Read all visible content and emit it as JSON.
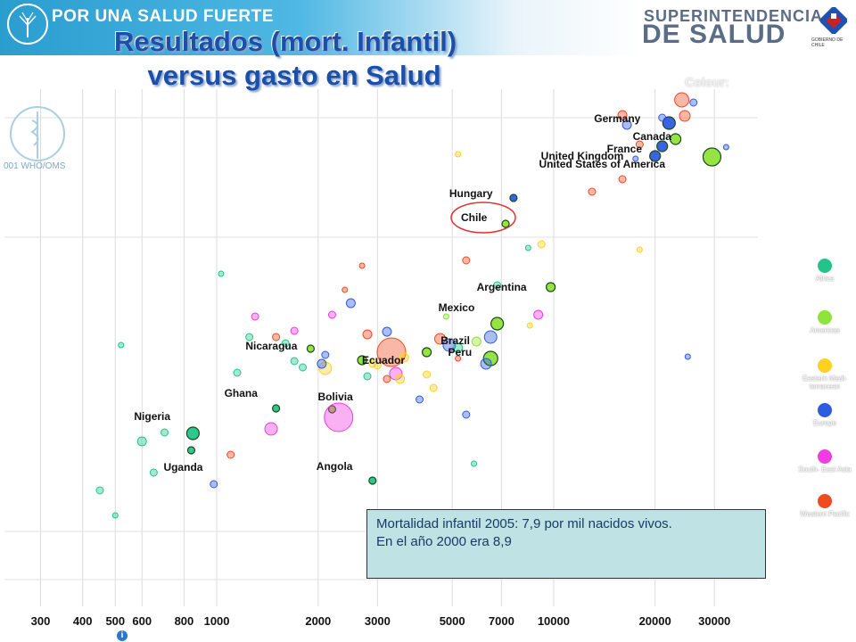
{
  "header": {
    "slogan": "POR UNA SALUD FUERTE",
    "brand_line1": "SUPERINTENDENCIA",
    "brand_line2": "DE SALUD",
    "brand_sub": "GOBIERNO DE CHILE",
    "watermark": "001 WHO/OMS",
    "colour_tag": "Colour:"
  },
  "slide": {
    "title_line1": "Resultados (mort. Infantil)",
    "title_line2": "versus gasto en Salud"
  },
  "infobox": {
    "line1": "Mortalidad infantil 2005: 7,9 por mil nacidos vivos.",
    "line2": "En el año 2000 era 8,9"
  },
  "legend": [
    {
      "label": "Africa",
      "color": "#22c48a"
    },
    {
      "label": "Americas",
      "color": "#8fe33a"
    },
    {
      "label": "Eastern Medi- terranean",
      "color": "#ffd21f"
    },
    {
      "label": "Europe",
      "color": "#2f5be0"
    },
    {
      "label": "South- East Asia",
      "color": "#f03ce0"
    },
    {
      "label": "Western Pacific",
      "color": "#f04a22"
    }
  ],
  "colors": {
    "Africa": "#22c48a",
    "Americas": "#8fe33a",
    "EMR": "#ffd21f",
    "Europe": "#2f5be0",
    "SEAsia": "#f03ce0",
    "WPacific": "#f04a22",
    "highlight": "#e03030"
  },
  "chart_data": {
    "type": "scatter",
    "x_ticks": [
      "300",
      "400",
      "500",
      "600",
      "800",
      "1000",
      "2000",
      "3000",
      "5000",
      "7000",
      "10000",
      "20000",
      "30000"
    ],
    "x_scale": "log",
    "xlim": [
      260,
      38000
    ],
    "grid": true,
    "highlight": "Chile",
    "points": [
      {
        "name": "Germany",
        "x": 22000,
        "region": "Europe",
        "r": 7,
        "labeled": true
      },
      {
        "name": "Canada",
        "x": 23000,
        "region": "Americas",
        "r": 6,
        "labeled": true
      },
      {
        "name": "France",
        "x": 21000,
        "region": "Europe",
        "r": 6,
        "labeled": true
      },
      {
        "name": "United Kingdom",
        "x": 20000,
        "region": "Europe",
        "r": 6,
        "labeled": true
      },
      {
        "name": "United States of America",
        "x": 29500,
        "region": "Americas",
        "r": 10,
        "labeled": true
      },
      {
        "name": "Hungary",
        "x": 7600,
        "region": "Europe",
        "r": 4,
        "labeled": true
      },
      {
        "name": "Chile",
        "x": 7200,
        "region": "Americas",
        "r": 4,
        "labeled": true
      },
      {
        "name": "Argentina",
        "x": 9800,
        "region": "Americas",
        "r": 5,
        "labeled": true
      },
      {
        "name": "Mexico",
        "x": 6800,
        "region": "Americas",
        "r": 7,
        "labeled": true
      },
      {
        "name": "Brazil",
        "x": 6500,
        "region": "Americas",
        "r": 8,
        "labeled": true
      },
      {
        "name": "Peru",
        "x": 4200,
        "region": "Americas",
        "r": 5,
        "labeled": true
      },
      {
        "name": "Nicaragua",
        "x": 1900,
        "region": "Americas",
        "r": 4,
        "labeled": true
      },
      {
        "name": "Ecuador",
        "x": 2700,
        "region": "Americas",
        "r": 5,
        "labeled": true
      },
      {
        "name": "Ghana",
        "x": 1500,
        "region": "Africa",
        "r": 4,
        "labeled": true
      },
      {
        "name": "Bolivia",
        "x": 2200,
        "region": "Americas",
        "r": 4,
        "labeled": true
      },
      {
        "name": "Nigeria",
        "x": 850,
        "region": "Africa",
        "r": 7,
        "labeled": true
      },
      {
        "name": "Uganda",
        "x": 840,
        "region": "Africa",
        "r": 4,
        "labeled": true
      },
      {
        "name": "Angola",
        "x": 2900,
        "region": "Africa",
        "r": 4,
        "labeled": true
      },
      {
        "name": "",
        "x": 24000,
        "region": "WPacific",
        "r": 8
      },
      {
        "name": "",
        "x": 24500,
        "region": "WPacific",
        "r": 6
      },
      {
        "name": "",
        "x": 26000,
        "region": "Europe",
        "r": 4
      },
      {
        "name": "",
        "x": 16000,
        "region": "WPacific",
        "r": 5
      },
      {
        "name": "",
        "x": 16500,
        "region": "Europe",
        "r": 5
      },
      {
        "name": "",
        "x": 18000,
        "region": "WPacific",
        "r": 4
      },
      {
        "name": "",
        "x": 16000,
        "region": "WPacific",
        "r": 4
      },
      {
        "name": "",
        "x": 13000,
        "region": "WPacific",
        "r": 4
      },
      {
        "name": "",
        "x": 9000,
        "region": "SEAsia",
        "r": 5
      },
      {
        "name": "",
        "x": 6500,
        "region": "Europe",
        "r": 7
      },
      {
        "name": "",
        "x": 3300,
        "region": "WPacific",
        "r": 16
      },
      {
        "name": "",
        "x": 2300,
        "region": "SEAsia",
        "r": 16
      },
      {
        "name": "",
        "x": 1450,
        "region": "SEAsia",
        "r": 7
      },
      {
        "name": "",
        "x": 3400,
        "region": "SEAsia",
        "r": 7
      },
      {
        "name": "",
        "x": 4600,
        "region": "WPacific",
        "r": 6
      },
      {
        "name": "",
        "x": 4900,
        "region": "Europe",
        "r": 7
      },
      {
        "name": "",
        "x": 5900,
        "region": "Americas",
        "r": 5
      },
      {
        "name": "",
        "x": 5200,
        "region": "Africa",
        "r": 5
      },
      {
        "name": "",
        "x": 1700,
        "region": "Africa",
        "r": 4
      },
      {
        "name": "",
        "x": 1250,
        "region": "Africa",
        "r": 4
      },
      {
        "name": "",
        "x": 1150,
        "region": "Africa",
        "r": 4
      },
      {
        "name": "",
        "x": 2100,
        "region": "EMR",
        "r": 7
      },
      {
        "name": "",
        "x": 3600,
        "region": "EMR",
        "r": 5
      },
      {
        "name": "",
        "x": 3500,
        "region": "EMR",
        "r": 5
      },
      {
        "name": "",
        "x": 4200,
        "region": "EMR",
        "r": 4
      },
      {
        "name": "",
        "x": 2800,
        "region": "WPacific",
        "r": 5
      },
      {
        "name": "",
        "x": 2200,
        "region": "SEAsia",
        "r": 4
      },
      {
        "name": "",
        "x": 3200,
        "region": "Europe",
        "r": 5
      },
      {
        "name": "",
        "x": 3000,
        "region": "EMR",
        "r": 4
      },
      {
        "name": "",
        "x": 2100,
        "region": "Europe",
        "r": 4
      },
      {
        "name": "",
        "x": 2050,
        "region": "Europe",
        "r": 5
      },
      {
        "name": "",
        "x": 1800,
        "region": "Africa",
        "r": 4
      },
      {
        "name": "",
        "x": 1700,
        "region": "SEAsia",
        "r": 4
      },
      {
        "name": "",
        "x": 1500,
        "region": "WPacific",
        "r": 4
      },
      {
        "name": "",
        "x": 1600,
        "region": "Africa",
        "r": 4
      },
      {
        "name": "",
        "x": 1300,
        "region": "SEAsia",
        "r": 4
      },
      {
        "name": "",
        "x": 1100,
        "region": "WPacific",
        "r": 4
      },
      {
        "name": "",
        "x": 700,
        "region": "Africa",
        "r": 4
      },
      {
        "name": "",
        "x": 600,
        "region": "Africa",
        "r": 5
      },
      {
        "name": "",
        "x": 650,
        "region": "Africa",
        "r": 4
      },
      {
        "name": "",
        "x": 450,
        "region": "Africa",
        "r": 4
      },
      {
        "name": "",
        "x": 500,
        "region": "Africa",
        "r": 3
      },
      {
        "name": "",
        "x": 520,
        "region": "Africa",
        "r": 3
      },
      {
        "name": "",
        "x": 980,
        "region": "Europe",
        "r": 4
      },
      {
        "name": "",
        "x": 1030,
        "region": "Africa",
        "r": 3
      },
      {
        "name": "",
        "x": 2500,
        "region": "Europe",
        "r": 5
      },
      {
        "name": "",
        "x": 2400,
        "region": "WPacific",
        "r": 3
      },
      {
        "name": "",
        "x": 2700,
        "region": "WPacific",
        "r": 3
      },
      {
        "name": "",
        "x": 3200,
        "region": "WPacific",
        "r": 4
      },
      {
        "name": "",
        "x": 2900,
        "region": "EMR",
        "r": 4
      },
      {
        "name": "",
        "x": 2800,
        "region": "Africa",
        "r": 4
      },
      {
        "name": "",
        "x": 4400,
        "region": "EMR",
        "r": 4
      },
      {
        "name": "",
        "x": 4000,
        "region": "Europe",
        "r": 4
      },
      {
        "name": "",
        "x": 5500,
        "region": "Europe",
        "r": 4
      },
      {
        "name": "",
        "x": 5200,
        "region": "WPacific",
        "r": 3
      },
      {
        "name": "",
        "x": 5800,
        "region": "Africa",
        "r": 3
      },
      {
        "name": "",
        "x": 8400,
        "region": "Africa",
        "r": 3
      },
      {
        "name": "",
        "x": 9200,
        "region": "EMR",
        "r": 4
      },
      {
        "name": "",
        "x": 8500,
        "region": "EMR",
        "r": 3
      },
      {
        "name": "",
        "x": 18000,
        "region": "EMR",
        "r": 3
      },
      {
        "name": "",
        "x": 6300,
        "region": "Europe",
        "r": 6
      },
      {
        "name": "",
        "x": 6800,
        "region": "Africa",
        "r": 4
      },
      {
        "name": "",
        "x": 5500,
        "region": "WPacific",
        "r": 4
      },
      {
        "name": "",
        "x": 4800,
        "region": "Americas",
        "r": 3
      },
      {
        "name": "",
        "x": 5200,
        "region": "EMR",
        "r": 3
      },
      {
        "name": "",
        "x": 21000,
        "region": "Europe",
        "r": 4
      },
      {
        "name": "",
        "x": 17500,
        "region": "Europe",
        "r": 3
      },
      {
        "name": "",
        "x": 32500,
        "region": "Europe",
        "r": 3
      },
      {
        "name": "",
        "x": 25000,
        "region": "Europe",
        "r": 3
      }
    ]
  }
}
